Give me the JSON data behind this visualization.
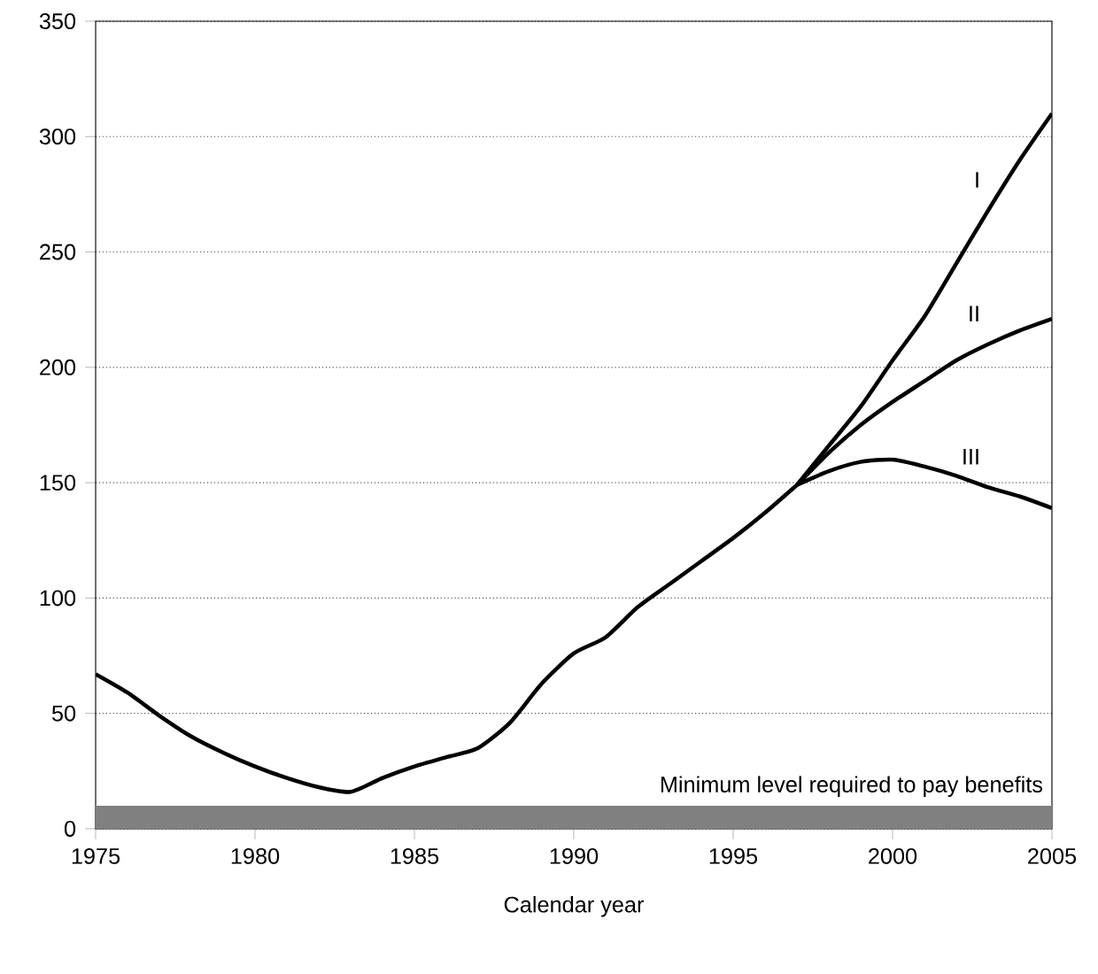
{
  "chart_data": {
    "type": "line",
    "xlabel": "Calendar year",
    "xlim": [
      1975,
      2005
    ],
    "xticks": [
      1975,
      1980,
      1985,
      1990,
      1995,
      2000,
      2005
    ],
    "ylim": [
      0,
      350
    ],
    "yticks": [
      0,
      50,
      100,
      150,
      200,
      250,
      300,
      350
    ],
    "grid": "y",
    "series": [
      {
        "color": "#000000",
        "x": [
          1975,
          1976,
          1977,
          1978,
          1979,
          1980,
          1981,
          1982,
          1983,
          1984,
          1985,
          1986,
          1987,
          1988,
          1989,
          1990,
          1991,
          1992,
          1993,
          1994,
          1995,
          1996,
          1997
        ],
        "values": [
          67,
          59,
          49,
          40,
          33,
          27,
          22,
          18,
          16,
          22,
          27,
          31,
          35,
          46,
          63,
          76,
          83,
          96,
          106,
          116,
          126,
          137,
          149
        ]
      },
      {
        "name": "I",
        "color": "#000000",
        "x": [
          1997,
          1998,
          1999,
          2000,
          2001,
          2002,
          2003,
          2004,
          2005
        ],
        "values": [
          149,
          166,
          183,
          203,
          222,
          245,
          268,
          290,
          310
        ]
      },
      {
        "name": "II",
        "color": "#000000",
        "x": [
          1997,
          1998,
          1999,
          2000,
          2001,
          2002,
          2003,
          2004,
          2005
        ],
        "values": [
          149,
          163,
          175,
          185,
          194,
          203,
          210,
          216,
          221
        ]
      },
      {
        "name": "III",
        "color": "#000000",
        "x": [
          1997,
          1998,
          1999,
          2000,
          2001,
          2002,
          2003,
          2004,
          2005
        ],
        "values": [
          149,
          155,
          159,
          160,
          157,
          153,
          148,
          144,
          139
        ]
      }
    ],
    "bands": [
      {
        "axis": "y",
        "from": 0,
        "to": 10,
        "label": "Minimum level required to pay benefits",
        "color": "#808080"
      }
    ]
  }
}
